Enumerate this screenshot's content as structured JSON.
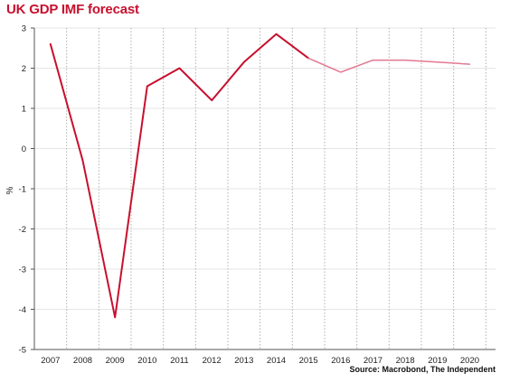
{
  "title": "UK GDP IMF forecast",
  "source": "Source: Macrobond, The Independent",
  "colors": {
    "title": "#c8102e",
    "actual_line": "#c8102e",
    "forecast_line": "#e37890",
    "grid_vertical": "#b0b0b0",
    "grid_horizontal": "#e6e6e6",
    "axis": "#555555"
  },
  "chart_data": {
    "type": "line",
    "title": "UK GDP IMF forecast",
    "xlabel": "",
    "ylabel": "%",
    "ylim": [
      -5,
      3
    ],
    "yticks": [
      "-5",
      "-4",
      "-3",
      "-2",
      "-1",
      "0",
      "1",
      "2",
      "3"
    ],
    "xlim": [
      2006.5,
      2020.8
    ],
    "xticks": [
      "2007",
      "2008",
      "2009",
      "2010",
      "2011",
      "2012",
      "2013",
      "2014",
      "2015",
      "2016",
      "2017",
      "2018",
      "2019",
      "2020"
    ],
    "grid": "vertical dotted between years",
    "series": [
      {
        "style": "solid",
        "x": [
          2007,
          2008,
          2009,
          2010,
          2011,
          2012,
          2013,
          2014,
          2015
        ],
        "values": [
          2.6,
          -0.3,
          -4.2,
          1.55,
          2.0,
          1.2,
          2.15,
          2.85,
          2.25
        ]
      },
      {
        "style": "light",
        "x": [
          2015,
          2016,
          2017,
          2018,
          2019,
          2020
        ],
        "values": [
          2.25,
          1.9,
          2.2,
          2.2,
          2.15,
          2.1
        ]
      }
    ]
  }
}
